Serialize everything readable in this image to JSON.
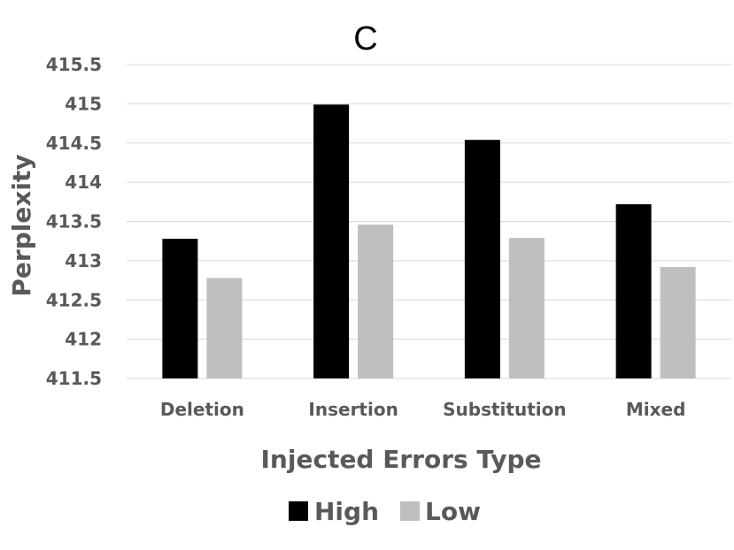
{
  "chart_data": {
    "type": "bar",
    "title": "C",
    "xlabel": "Injected Errors Type",
    "ylabel": "Perplexity",
    "categories": [
      "Deletion",
      "Insertion",
      "Substitution",
      "Mixed"
    ],
    "series": [
      {
        "name": "High",
        "color": "#000000",
        "values": [
          413.28,
          414.99,
          414.54,
          413.72
        ]
      },
      {
        "name": "Low",
        "color": "#bfbfbf",
        "values": [
          412.78,
          413.46,
          413.29,
          412.92
        ]
      }
    ],
    "ylim": [
      411.5,
      415.5
    ],
    "yticks": [
      "411.5",
      "412",
      "412.5",
      "413",
      "413.5",
      "414",
      "414.5",
      "415",
      "415.5"
    ],
    "grid": true,
    "legend_position": "bottom"
  }
}
